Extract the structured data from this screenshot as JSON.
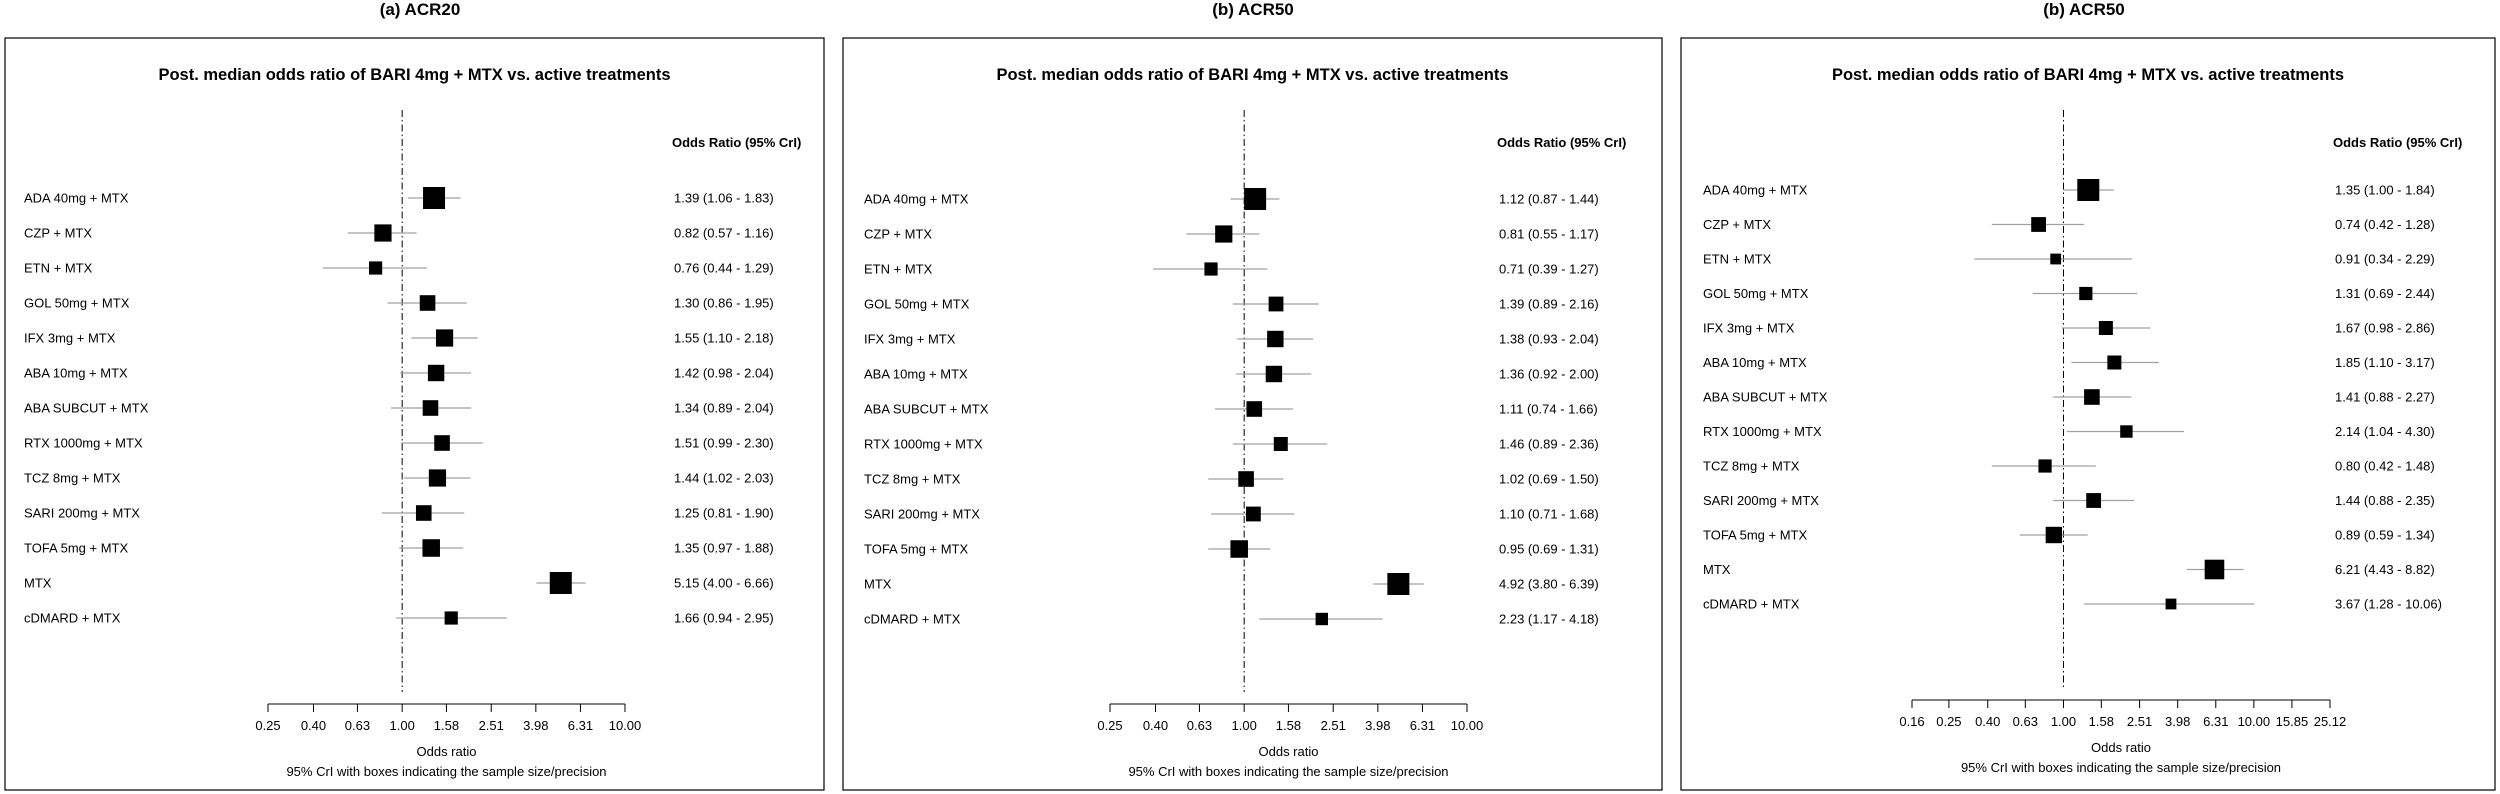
{
  "colors": {
    "box": "#000000",
    "ci_line": "#a0a0a0",
    "ref_line": "#000000",
    "frame": "#000000"
  },
  "chart_data": [
    {
      "type": "forest",
      "panel_label": "(a) ACR20",
      "title": "Post. median odds ratio of BARI 4mg + MTX vs. active treatments",
      "ci_header": "Odds Ratio (95% CrI)",
      "xlabel": "Odds ratio",
      "footnote": "95% CrI with boxes indicating the sample size/precision",
      "xscale": "log",
      "reference_line": 1.0,
      "xticks": [
        "0.25",
        "0.40",
        "0.63",
        "1.00",
        "1.58",
        "2.51",
        "3.98",
        "6.31",
        "10.00"
      ],
      "xlim": [
        0.25,
        10.0
      ],
      "rows": [
        {
          "label": "ADA 40mg + MTX",
          "or": 1.39,
          "lo": 1.06,
          "hi": 1.83,
          "ci_text": "1.39 (1.06 - 1.83)",
          "weight": 1.0
        },
        {
          "label": "CZP + MTX",
          "or": 0.82,
          "lo": 0.57,
          "hi": 1.16,
          "ci_text": "0.82 (0.57 - 1.16)",
          "weight": 0.7
        },
        {
          "label": "ETN + MTX",
          "or": 0.76,
          "lo": 0.44,
          "hi": 1.29,
          "ci_text": "0.76 (0.44 - 1.29)",
          "weight": 0.45
        },
        {
          "label": "GOL 50mg + MTX",
          "or": 1.3,
          "lo": 0.86,
          "hi": 1.95,
          "ci_text": "1.30 (0.86 - 1.95)",
          "weight": 0.6
        },
        {
          "label": "IFX 3mg + MTX",
          "or": 1.55,
          "lo": 1.1,
          "hi": 2.18,
          "ci_text": "1.55 (1.10 - 2.18)",
          "weight": 0.7
        },
        {
          "label": "ABA 10mg + MTX",
          "or": 1.42,
          "lo": 0.98,
          "hi": 2.04,
          "ci_text": "1.42 (0.98 - 2.04)",
          "weight": 0.65
        },
        {
          "label": "ABA SUBCUT + MTX",
          "or": 1.34,
          "lo": 0.89,
          "hi": 2.04,
          "ci_text": "1.34 (0.89 - 2.04)",
          "weight": 0.6
        },
        {
          "label": "RTX 1000mg + MTX",
          "or": 1.51,
          "lo": 0.99,
          "hi": 2.3,
          "ci_text": "1.51 (0.99 - 2.30)",
          "weight": 0.6
        },
        {
          "label": "TCZ 8mg + MTX",
          "or": 1.44,
          "lo": 1.02,
          "hi": 2.03,
          "ci_text": "1.44 (1.02 - 2.03)",
          "weight": 0.7
        },
        {
          "label": "SARI 200mg + MTX",
          "or": 1.25,
          "lo": 0.81,
          "hi": 1.9,
          "ci_text": "1.25 (0.81 - 1.90)",
          "weight": 0.6
        },
        {
          "label": "TOFA 5mg + MTX",
          "or": 1.35,
          "lo": 0.97,
          "hi": 1.88,
          "ci_text": "1.35 (0.97 - 1.88)",
          "weight": 0.72
        },
        {
          "label": "MTX",
          "or": 5.15,
          "lo": 4.0,
          "hi": 6.66,
          "ci_text": "5.15 (4.00 - 6.66)",
          "weight": 1.0
        },
        {
          "label": "cDMARD + MTX",
          "or": 1.66,
          "lo": 0.94,
          "hi": 2.95,
          "ci_text": "1.66 (0.94 - 2.95)",
          "weight": 0.45
        }
      ]
    },
    {
      "type": "forest",
      "panel_label": "(b) ACR50",
      "title": "Post. median odds ratio of BARI 4mg + MTX vs. active treatments",
      "ci_header": "Odds Ratio (95% CrI)",
      "xlabel": "Odds ratio",
      "footnote": "95% CrI with boxes indicating the sample size/precision",
      "xscale": "log",
      "reference_line": 1.0,
      "xticks": [
        "0.25",
        "0.40",
        "0.63",
        "1.00",
        "1.58",
        "2.51",
        "3.98",
        "6.31",
        "10.00"
      ],
      "xlim": [
        0.25,
        10.0
      ],
      "rows": [
        {
          "label": "ADA 40mg + MTX",
          "or": 1.12,
          "lo": 0.87,
          "hi": 1.44,
          "ci_text": "1.12 (0.87 - 1.44)",
          "weight": 1.0
        },
        {
          "label": "CZP + MTX",
          "or": 0.81,
          "lo": 0.55,
          "hi": 1.17,
          "ci_text": "0.81 (0.55 - 1.17)",
          "weight": 0.7
        },
        {
          "label": "ETN + MTX",
          "or": 0.71,
          "lo": 0.39,
          "hi": 1.27,
          "ci_text": "0.71 (0.39 - 1.27)",
          "weight": 0.45
        },
        {
          "label": "GOL 50mg + MTX",
          "or": 1.39,
          "lo": 0.89,
          "hi": 2.16,
          "ci_text": "1.39 (0.89 - 2.16)",
          "weight": 0.55
        },
        {
          "label": "IFX 3mg + MTX",
          "or": 1.38,
          "lo": 0.93,
          "hi": 2.04,
          "ci_text": "1.38 (0.93 - 2.04)",
          "weight": 0.65
        },
        {
          "label": "ABA 10mg + MTX",
          "or": 1.36,
          "lo": 0.92,
          "hi": 2.0,
          "ci_text": "1.36 (0.92 - 2.00)",
          "weight": 0.65
        },
        {
          "label": "ABA SUBCUT + MTX",
          "or": 1.11,
          "lo": 0.74,
          "hi": 1.66,
          "ci_text": "1.11 (0.74 - 1.66)",
          "weight": 0.6
        },
        {
          "label": "RTX 1000mg + MTX",
          "or": 1.46,
          "lo": 0.89,
          "hi": 2.36,
          "ci_text": "1.46 (0.89 - 2.36)",
          "weight": 0.5
        },
        {
          "label": "TCZ 8mg + MTX",
          "or": 1.02,
          "lo": 0.69,
          "hi": 1.5,
          "ci_text": "1.02 (0.69 - 1.50)",
          "weight": 0.6
        },
        {
          "label": "SARI 200mg + MTX",
          "or": 1.1,
          "lo": 0.71,
          "hi": 1.68,
          "ci_text": "1.10 (0.71 - 1.68)",
          "weight": 0.55
        },
        {
          "label": "TOFA 5mg + MTX",
          "or": 0.95,
          "lo": 0.69,
          "hi": 1.31,
          "ci_text": "0.95 (0.69 - 1.31)",
          "weight": 0.72
        },
        {
          "label": "MTX",
          "or": 4.92,
          "lo": 3.8,
          "hi": 6.39,
          "ci_text": "4.92 (3.80 - 6.39)",
          "weight": 1.0
        },
        {
          "label": "cDMARD + MTX",
          "or": 2.23,
          "lo": 1.17,
          "hi": 4.18,
          "ci_text": "2.23 (1.17 - 4.18)",
          "weight": 0.4
        }
      ]
    },
    {
      "type": "forest",
      "panel_label": "(b) ACR50",
      "title": "Post. median odds ratio of BARI 4mg + MTX vs. active treatments",
      "ci_header": "Odds Ratio (95% CrI)",
      "xlabel": "Odds ratio",
      "footnote": "95% CrI with boxes indicating the sample size/precision",
      "xscale": "log",
      "reference_line": 1.0,
      "xticks": [
        "0.16",
        "0.25",
        "0.40",
        "0.63",
        "1.00",
        "1.58",
        "2.51",
        "3.98",
        "6.31",
        "10.00",
        "15.85",
        "25.12"
      ],
      "xlim": [
        0.16,
        25.12
      ],
      "rows": [
        {
          "label": "ADA 40mg + MTX",
          "or": 1.35,
          "lo": 1.0,
          "hi": 1.84,
          "ci_text": "1.35 (1.00 - 1.84)",
          "weight": 1.0
        },
        {
          "label": "CZP + MTX",
          "or": 0.74,
          "lo": 0.42,
          "hi": 1.28,
          "ci_text": "0.74 (0.42 - 1.28)",
          "weight": 0.55
        },
        {
          "label": "ETN + MTX",
          "or": 0.91,
          "lo": 0.34,
          "hi": 2.29,
          "ci_text": "0.91 (0.34 - 2.29)",
          "weight": 0.3
        },
        {
          "label": "GOL 50mg + MTX",
          "or": 1.31,
          "lo": 0.69,
          "hi": 2.44,
          "ci_text": "1.31 (0.69 - 2.44)",
          "weight": 0.45
        },
        {
          "label": "IFX 3mg + MTX",
          "or": 1.67,
          "lo": 0.98,
          "hi": 2.86,
          "ci_text": "1.67 (0.98 - 2.86)",
          "weight": 0.5
        },
        {
          "label": "ABA 10mg + MTX",
          "or": 1.85,
          "lo": 1.1,
          "hi": 3.17,
          "ci_text": "1.85 (1.10 - 3.17)",
          "weight": 0.5
        },
        {
          "label": "ABA SUBCUT + MTX",
          "or": 1.41,
          "lo": 0.88,
          "hi": 2.27,
          "ci_text": "1.41 (0.88 - 2.27)",
          "weight": 0.6
        },
        {
          "label": "RTX 1000mg + MTX",
          "or": 2.14,
          "lo": 1.04,
          "hi": 4.3,
          "ci_text": "2.14 (1.04 - 4.30)",
          "weight": 0.4
        },
        {
          "label": "TCZ 8mg + MTX",
          "or": 0.8,
          "lo": 0.42,
          "hi": 1.48,
          "ci_text": "0.80 (0.42 - 1.48)",
          "weight": 0.45
        },
        {
          "label": "SARI 200mg + MTX",
          "or": 1.44,
          "lo": 0.88,
          "hi": 2.35,
          "ci_text": "1.44 (0.88 - 2.35)",
          "weight": 0.55
        },
        {
          "label": "TOFA 5mg + MTX",
          "or": 0.89,
          "lo": 0.59,
          "hi": 1.34,
          "ci_text": "0.89 (0.59 - 1.34)",
          "weight": 0.65
        },
        {
          "label": "MTX",
          "or": 6.21,
          "lo": 4.43,
          "hi": 8.82,
          "ci_text": "6.21 (4.43 - 8.82)",
          "weight": 0.85
        },
        {
          "label": "cDMARD + MTX",
          "or": 3.67,
          "lo": 1.28,
          "hi": 10.06,
          "ci_text": "3.67 (1.28 - 10.06)",
          "weight": 0.3
        }
      ]
    }
  ]
}
